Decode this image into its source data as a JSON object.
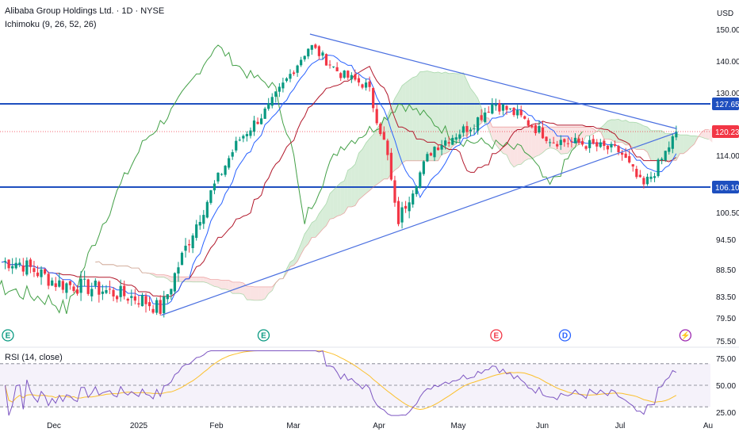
{
  "header": {
    "title": "Alibaba Group Holdings Ltd. · 1D · NYSE",
    "indicator": "Ichimoku (9, 26, 52, 26)",
    "currency": "USD",
    "rsi_label": "RSI (14, close)"
  },
  "colors": {
    "up": "#089981",
    "down": "#f23645",
    "tenkan": "#2962ff",
    "kijun": "#b2182b",
    "chikou": "#43a047",
    "cloud_bull": "#c8e6c9",
    "cloud_bear": "#f8d7d7",
    "hline": "#1e4fbf",
    "trend": "#4a6fe0",
    "rsi": "#7e57c2",
    "rsi_ma": "#fbc02d",
    "last_price": "#f23645"
  },
  "chart_data": {
    "type": "candlestick",
    "y_ticks": [
      "150.00",
      "140.00",
      "130.00",
      "120.23",
      "114.00",
      "106.10",
      "100.50",
      "94.50",
      "88.50",
      "83.50",
      "79.50",
      "75.50"
    ],
    "x_ticks": [
      "Dec",
      "2025",
      "Feb",
      "Mar",
      "Apr",
      "May",
      "Jun",
      "Jul",
      "Au"
    ],
    "price_labels": [
      {
        "value": 127.65,
        "text": "127.65",
        "kind": "hline"
      },
      {
        "value": 120.23,
        "text": "120.23",
        "kind": "last"
      },
      {
        "value": 106.1,
        "text": "106.10",
        "kind": "hline"
      }
    ],
    "horizontal_lines": [
      127.65,
      106.1
    ],
    "last_price": 120.23,
    "trendlines": [
      {
        "from": [
          "Jan 10",
          80.0
        ],
        "to": [
          "Jul 21",
          120.0
        ]
      },
      {
        "from": [
          "Mar 07",
          148.5
        ],
        "to": [
          "Jul 21",
          121.0
        ]
      }
    ],
    "close_series_anchors": [
      [
        "Nov 18",
        90
      ],
      [
        "Dec 02",
        86
      ],
      [
        "Dec 16",
        85
      ],
      [
        "Jan 02",
        83
      ],
      [
        "Jan 10",
        81
      ],
      [
        "Jan 24",
        98
      ],
      [
        "Feb 10",
        118
      ],
      [
        "Feb 24",
        128
      ],
      [
        "Mar 07",
        145
      ],
      [
        "Mar 18",
        136
      ],
      [
        "Mar 28",
        132
      ],
      [
        "Apr 04",
        115
      ],
      [
        "Apr 08",
        98
      ],
      [
        "Apr 22",
        116
      ],
      [
        "May 06",
        122
      ],
      [
        "May 14",
        128
      ],
      [
        "May 22",
        125
      ],
      [
        "Jun 05",
        118
      ],
      [
        "Jun 18",
        117
      ],
      [
        "Jul 01",
        115
      ],
      [
        "Jul 09",
        106
      ],
      [
        "Jul 15",
        112
      ],
      [
        "Jul 21",
        120.23
      ]
    ],
    "event_badges": [
      {
        "date": "Nov 14",
        "text": "E",
        "color": "#089981"
      },
      {
        "date": "Feb 20",
        "text": "E",
        "color": "#089981"
      },
      {
        "date": "May 15",
        "text": "E",
        "color": "#f23645"
      },
      {
        "date": "Jun 10",
        "text": "D",
        "color": "#2962ff"
      },
      {
        "date": "Jul 24",
        "text": "⚡",
        "color": "#9c27b0"
      }
    ],
    "rsi": {
      "y_ticks": [
        "75.00",
        "50.00",
        "25.00"
      ],
      "upper": 70,
      "mid": 50,
      "lower": 30,
      "last": 62
    }
  }
}
